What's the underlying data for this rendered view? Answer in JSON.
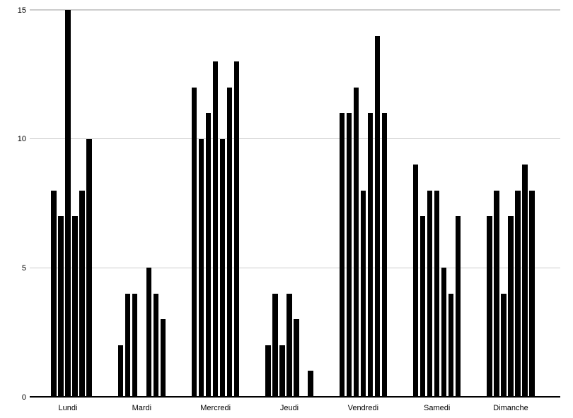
{
  "chart_data": {
    "type": "bar",
    "title": "",
    "xlabel": "",
    "ylabel": "",
    "legend": "none",
    "grid": true,
    "ylim": [
      0,
      15
    ],
    "yticks": [
      0,
      5,
      10,
      15
    ],
    "bars_per_group": 7,
    "categories": [
      "Lundi",
      "Mardi",
      "Mercredi",
      "Jeudi",
      "Vendredi",
      "Samedi",
      "Dimanche"
    ],
    "series_per_category": [
      [
        0,
        8,
        7,
        15,
        7,
        8,
        10
      ],
      [
        2,
        4,
        4,
        0,
        5,
        4,
        3
      ],
      [
        12,
        10,
        11,
        13,
        10,
        12,
        13
      ],
      [
        2,
        4,
        2,
        4,
        3,
        0,
        1
      ],
      [
        11,
        11,
        12,
        8,
        11,
        14,
        11
      ],
      [
        9,
        7,
        8,
        8,
        5,
        4,
        7
      ],
      [
        7,
        8,
        4,
        7,
        8,
        9,
        8
      ]
    ],
    "colors": {
      "bar": "#000000",
      "gridline": "#cccccc",
      "axis": "#000000",
      "text": "#000000",
      "background": "#ffffff"
    }
  }
}
